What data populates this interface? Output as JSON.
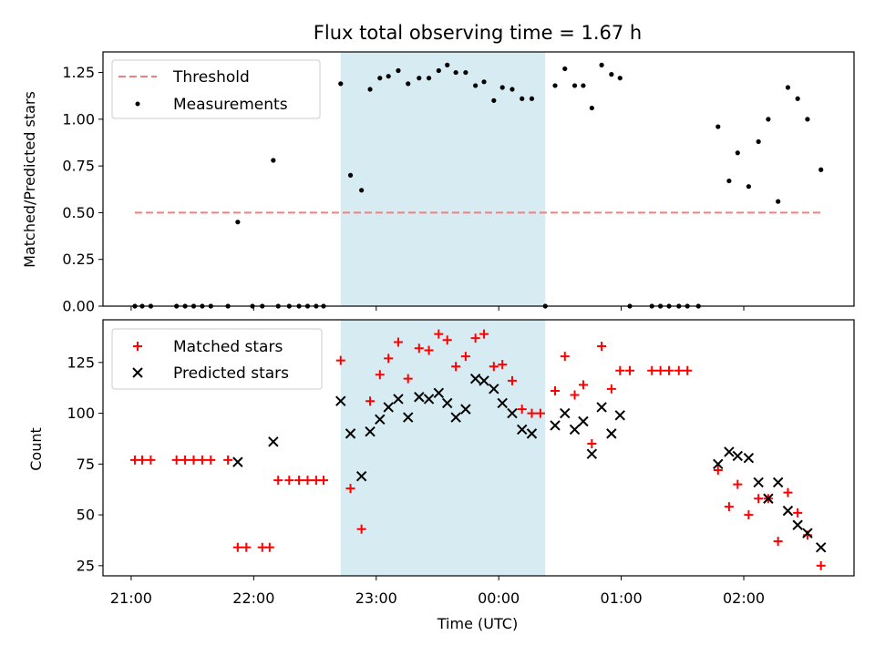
{
  "chart_data": {
    "title": "Flux total observing time = 1.67 h",
    "xlabel": "Time (UTC)",
    "x_unit": "hours since 21:00 UTC",
    "x_ticks": [
      {
        "value": 0,
        "label": "21:00"
      },
      {
        "value": 1,
        "label": "22:00"
      },
      {
        "value": 2,
        "label": "23:00"
      },
      {
        "value": 3,
        "label": "00:00"
      },
      {
        "value": 4,
        "label": "01:00"
      },
      {
        "value": 5,
        "label": "02:00"
      }
    ],
    "xlim": [
      -0.23,
      5.9
    ],
    "shaded_interval": {
      "x0": 1.71,
      "x1": 3.38,
      "color": "#add8e6"
    },
    "panels": [
      {
        "id": "ratio",
        "ylabel": "Matched/Predicted stars",
        "ylim": [
          0,
          1.36
        ],
        "y_ticks": [
          {
            "value": 0,
            "label": "0.00"
          },
          {
            "value": 0.25,
            "label": "0.25"
          },
          {
            "value": 0.5,
            "label": "0.50"
          },
          {
            "value": 0.75,
            "label": "0.75"
          },
          {
            "value": 1.0,
            "label": "1.00"
          },
          {
            "value": 1.25,
            "label": "1.25"
          }
        ],
        "legend": {
          "location": "upper left",
          "entries": [
            {
              "label": "Threshold",
              "marker": "dashed-line"
            },
            {
              "label": "Measurements",
              "marker": "dot"
            }
          ]
        },
        "threshold": {
          "name": "Threshold",
          "y": 0.5,
          "x_start": 0.03,
          "x_end": 5.63,
          "color": "#f08080",
          "style": "dashed"
        },
        "measurements": {
          "name": "Measurements",
          "color": "#000000",
          "points": [
            [
              0.03,
              0
            ],
            [
              0.09,
              0
            ],
            [
              0.16,
              0
            ],
            [
              0.37,
              0
            ],
            [
              0.44,
              0
            ],
            [
              0.51,
              0
            ],
            [
              0.58,
              0
            ],
            [
              0.65,
              0
            ],
            [
              0.79,
              0
            ],
            [
              0.87,
              0.45
            ],
            [
              0.99,
              0
            ],
            [
              1.07,
              0
            ],
            [
              1.2,
              0
            ],
            [
              1.29,
              0
            ],
            [
              1.37,
              0
            ],
            [
              1.44,
              0
            ],
            [
              1.51,
              0
            ],
            [
              1.57,
              0
            ],
            [
              1.71,
              1.19
            ],
            [
              1.79,
              0.7
            ],
            [
              1.88,
              0.62
            ],
            [
              1.95,
              1.16
            ],
            [
              2.03,
              1.22
            ],
            [
              2.1,
              1.23
            ],
            [
              2.18,
              1.26
            ],
            [
              2.26,
              1.19
            ],
            [
              2.35,
              1.22
            ],
            [
              2.43,
              1.22
            ],
            [
              2.51,
              1.26
            ],
            [
              2.58,
              1.29
            ],
            [
              2.65,
              1.25
            ],
            [
              2.73,
              1.25
            ],
            [
              2.81,
              1.18
            ],
            [
              2.88,
              1.2
            ],
            [
              2.96,
              1.1
            ],
            [
              3.03,
              1.17
            ],
            [
              3.11,
              1.16
            ],
            [
              3.19,
              1.11
            ],
            [
              3.27,
              1.11
            ],
            [
              3.46,
              1.18
            ],
            [
              3.54,
              1.27
            ],
            [
              3.62,
              1.18
            ],
            [
              3.69,
              1.18
            ],
            [
              3.76,
              1.06
            ],
            [
              3.84,
              1.29
            ],
            [
              3.92,
              1.24
            ],
            [
              3.99,
              1.22
            ],
            [
              4.07,
              0
            ],
            [
              4.25,
              0
            ],
            [
              4.32,
              0
            ],
            [
              4.39,
              0
            ],
            [
              4.47,
              0
            ],
            [
              4.54,
              0
            ],
            [
              4.63,
              0
            ],
            [
              4.79,
              0.96
            ],
            [
              4.88,
              0.67
            ],
            [
              4.95,
              0.82
            ],
            [
              5.04,
              0.64
            ],
            [
              5.12,
              0.88
            ],
            [
              5.2,
              1.0
            ],
            [
              5.28,
              0.56
            ],
            [
              5.36,
              1.17
            ],
            [
              5.44,
              1.11
            ],
            [
              5.52,
              1.0
            ],
            [
              5.63,
              0.73
            ],
            [
              1.16,
              0.78
            ],
            [
              3.38,
              0
            ]
          ]
        }
      },
      {
        "id": "count",
        "ylabel": "Count",
        "ylim": [
          20,
          146
        ],
        "y_ticks": [
          {
            "value": 25,
            "label": "25"
          },
          {
            "value": 50,
            "label": "50"
          },
          {
            "value": 75,
            "label": "75"
          },
          {
            "value": 100,
            "label": "100"
          },
          {
            "value": 125,
            "label": "125"
          }
        ],
        "legend": {
          "location": "upper left",
          "entries": [
            {
              "label": "Matched stars",
              "marker": "plus",
              "color": "#ff0000"
            },
            {
              "label": "Predicted stars",
              "marker": "x",
              "color": "#000000"
            }
          ]
        },
        "series": [
          {
            "name": "Matched stars",
            "marker": "plus",
            "color": "#ff0000",
            "points": [
              [
                0.03,
                77
              ],
              [
                0.09,
                77
              ],
              [
                0.16,
                77
              ],
              [
                0.37,
                77
              ],
              [
                0.44,
                77
              ],
              [
                0.51,
                77
              ],
              [
                0.58,
                77
              ],
              [
                0.65,
                77
              ],
              [
                0.79,
                77
              ],
              [
                0.87,
                34
              ],
              [
                0.94,
                34
              ],
              [
                1.07,
                34
              ],
              [
                1.13,
                34
              ],
              [
                1.2,
                67
              ],
              [
                1.29,
                67
              ],
              [
                1.37,
                67
              ],
              [
                1.44,
                67
              ],
              [
                1.51,
                67
              ],
              [
                1.57,
                67
              ],
              [
                1.71,
                126
              ],
              [
                1.79,
                63
              ],
              [
                1.88,
                43
              ],
              [
                1.95,
                106
              ],
              [
                2.03,
                119
              ],
              [
                2.1,
                127
              ],
              [
                2.18,
                135
              ],
              [
                2.26,
                117
              ],
              [
                2.35,
                132
              ],
              [
                2.43,
                131
              ],
              [
                2.51,
                139
              ],
              [
                2.58,
                136
              ],
              [
                2.65,
                123
              ],
              [
                2.73,
                128
              ],
              [
                2.81,
                137
              ],
              [
                2.88,
                139
              ],
              [
                2.96,
                123
              ],
              [
                3.03,
                124
              ],
              [
                3.11,
                116
              ],
              [
                3.19,
                102
              ],
              [
                3.27,
                100
              ],
              [
                3.34,
                100
              ],
              [
                3.46,
                111
              ],
              [
                3.54,
                128
              ],
              [
                3.62,
                109
              ],
              [
                3.69,
                114
              ],
              [
                3.76,
                85
              ],
              [
                3.84,
                133
              ],
              [
                3.92,
                112
              ],
              [
                3.99,
                121
              ],
              [
                4.07,
                121
              ],
              [
                4.25,
                121
              ],
              [
                4.32,
                121
              ],
              [
                4.39,
                121
              ],
              [
                4.47,
                121
              ],
              [
                4.54,
                121
              ],
              [
                4.79,
                72
              ],
              [
                4.88,
                54
              ],
              [
                4.95,
                65
              ],
              [
                5.04,
                50
              ],
              [
                5.12,
                58
              ],
              [
                5.2,
                58
              ],
              [
                5.28,
                37
              ],
              [
                5.36,
                61
              ],
              [
                5.44,
                51
              ],
              [
                5.52,
                40
              ],
              [
                5.63,
                25
              ]
            ]
          },
          {
            "name": "Predicted stars",
            "marker": "x",
            "color": "#000000",
            "points": [
              [
                0.87,
                76
              ],
              [
                1.16,
                86
              ],
              [
                1.71,
                106
              ],
              [
                1.79,
                90
              ],
              [
                1.88,
                69
              ],
              [
                1.95,
                91
              ],
              [
                2.03,
                97
              ],
              [
                2.1,
                103
              ],
              [
                2.18,
                107
              ],
              [
                2.26,
                98
              ],
              [
                2.35,
                108
              ],
              [
                2.43,
                107
              ],
              [
                2.51,
                110
              ],
              [
                2.58,
                105
              ],
              [
                2.65,
                98
              ],
              [
                2.73,
                102
              ],
              [
                2.81,
                117
              ],
              [
                2.88,
                116
              ],
              [
                2.96,
                112
              ],
              [
                3.03,
                105
              ],
              [
                3.11,
                100
              ],
              [
                3.19,
                92
              ],
              [
                3.27,
                90
              ],
              [
                3.46,
                94
              ],
              [
                3.54,
                100
              ],
              [
                3.62,
                92
              ],
              [
                3.69,
                96
              ],
              [
                3.76,
                80
              ],
              [
                3.84,
                103
              ],
              [
                3.92,
                90
              ],
              [
                3.99,
                99
              ],
              [
                4.79,
                75
              ],
              [
                4.88,
                81
              ],
              [
                4.95,
                79
              ],
              [
                5.04,
                78
              ],
              [
                5.12,
                66
              ],
              [
                5.2,
                58
              ],
              [
                5.28,
                66
              ],
              [
                5.36,
                52
              ],
              [
                5.44,
                45
              ],
              [
                5.52,
                41
              ],
              [
                5.63,
                34
              ]
            ]
          }
        ]
      }
    ]
  }
}
